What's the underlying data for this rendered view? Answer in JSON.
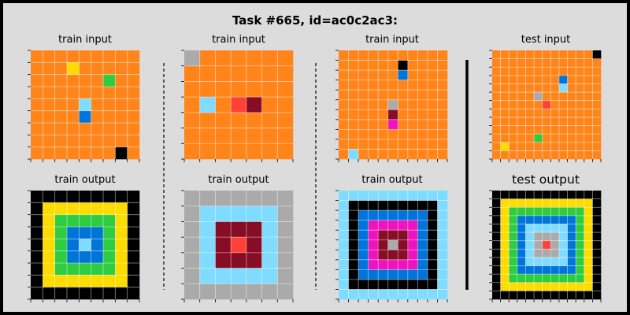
{
  "title": "Task #665, id=ac0c2ac3:",
  "colors": {
    "0": "#000000",
    "1": "#0074d9",
    "2": "#ff4136",
    "3": "#2ecc40",
    "4": "#ffdc00",
    "5": "#aaaaaa",
    "6": "#f012be",
    "7": "#ff851b",
    "8": "#7fdbff",
    "9": "#870c25"
  },
  "panels": [
    {
      "label": "train input",
      "size": 9,
      "cells": [
        [
          7,
          7,
          7,
          7,
          7,
          7,
          7,
          7,
          7
        ],
        [
          7,
          7,
          7,
          4,
          7,
          7,
          7,
          7,
          7
        ],
        [
          7,
          7,
          7,
          7,
          7,
          7,
          3,
          7,
          7
        ],
        [
          7,
          7,
          7,
          7,
          7,
          7,
          7,
          7,
          7
        ],
        [
          7,
          7,
          7,
          7,
          8,
          7,
          7,
          7,
          7
        ],
        [
          7,
          7,
          7,
          7,
          1,
          7,
          7,
          7,
          7
        ],
        [
          7,
          7,
          7,
          7,
          7,
          7,
          7,
          7,
          7
        ],
        [
          7,
          7,
          7,
          7,
          7,
          7,
          7,
          7,
          7
        ],
        [
          7,
          7,
          7,
          7,
          7,
          7,
          7,
          0,
          7
        ]
      ]
    },
    {
      "label": "train output",
      "size": 9,
      "cells": [
        [
          0,
          0,
          0,
          0,
          0,
          0,
          0,
          0,
          0
        ],
        [
          0,
          4,
          4,
          4,
          4,
          4,
          4,
          4,
          0
        ],
        [
          0,
          4,
          3,
          3,
          3,
          3,
          3,
          4,
          0
        ],
        [
          0,
          4,
          3,
          1,
          1,
          1,
          3,
          4,
          0
        ],
        [
          0,
          4,
          3,
          1,
          8,
          1,
          3,
          4,
          0
        ],
        [
          0,
          4,
          3,
          1,
          1,
          1,
          3,
          4,
          0
        ],
        [
          0,
          4,
          3,
          3,
          3,
          3,
          3,
          4,
          0
        ],
        [
          0,
          4,
          4,
          4,
          4,
          4,
          4,
          4,
          0
        ],
        [
          0,
          0,
          0,
          0,
          0,
          0,
          0,
          0,
          0
        ]
      ]
    },
    {
      "label": "train input",
      "size": 7,
      "cells": [
        [
          5,
          7,
          7,
          7,
          7,
          7,
          7
        ],
        [
          7,
          7,
          7,
          7,
          7,
          7,
          7
        ],
        [
          7,
          7,
          7,
          7,
          7,
          7,
          7
        ],
        [
          7,
          8,
          7,
          2,
          9,
          7,
          7
        ],
        [
          7,
          7,
          7,
          7,
          7,
          7,
          7
        ],
        [
          7,
          7,
          7,
          7,
          7,
          7,
          7
        ],
        [
          7,
          7,
          7,
          7,
          7,
          7,
          7
        ]
      ]
    },
    {
      "label": "train output",
      "size": 7,
      "cells": [
        [
          5,
          5,
          5,
          5,
          5,
          5,
          5
        ],
        [
          5,
          8,
          8,
          8,
          8,
          8,
          5
        ],
        [
          5,
          8,
          9,
          9,
          9,
          8,
          5
        ],
        [
          5,
          8,
          9,
          2,
          9,
          8,
          5
        ],
        [
          5,
          8,
          9,
          9,
          9,
          8,
          5
        ],
        [
          5,
          8,
          8,
          8,
          8,
          8,
          5
        ],
        [
          5,
          5,
          5,
          5,
          5,
          5,
          5
        ]
      ]
    },
    {
      "label": "train input",
      "size": 11,
      "cells": [
        [
          7,
          7,
          7,
          7,
          7,
          7,
          7,
          7,
          7,
          7,
          7
        ],
        [
          7,
          7,
          7,
          7,
          7,
          7,
          0,
          7,
          7,
          7,
          7
        ],
        [
          7,
          7,
          7,
          7,
          7,
          7,
          1,
          7,
          7,
          7,
          7
        ],
        [
          7,
          7,
          7,
          7,
          7,
          7,
          7,
          7,
          7,
          7,
          7
        ],
        [
          7,
          7,
          7,
          7,
          7,
          7,
          7,
          7,
          7,
          7,
          7
        ],
        [
          7,
          7,
          7,
          7,
          7,
          5,
          7,
          7,
          7,
          7,
          7
        ],
        [
          7,
          7,
          7,
          7,
          7,
          9,
          7,
          7,
          7,
          7,
          7
        ],
        [
          7,
          7,
          7,
          7,
          7,
          6,
          7,
          7,
          7,
          7,
          7
        ],
        [
          7,
          7,
          7,
          7,
          7,
          7,
          7,
          7,
          7,
          7,
          7
        ],
        [
          7,
          7,
          7,
          7,
          7,
          7,
          7,
          7,
          7,
          7,
          7
        ],
        [
          7,
          8,
          7,
          7,
          7,
          7,
          7,
          7,
          7,
          7,
          7
        ]
      ]
    },
    {
      "label": "train output",
      "size": 11,
      "cells": [
        [
          8,
          8,
          8,
          8,
          8,
          8,
          8,
          8,
          8,
          8,
          8
        ],
        [
          8,
          0,
          0,
          0,
          0,
          0,
          0,
          0,
          0,
          0,
          8
        ],
        [
          8,
          0,
          1,
          1,
          1,
          1,
          1,
          1,
          1,
          0,
          8
        ],
        [
          8,
          0,
          1,
          6,
          6,
          6,
          6,
          6,
          1,
          0,
          8
        ],
        [
          8,
          0,
          1,
          6,
          9,
          9,
          9,
          6,
          1,
          0,
          8
        ],
        [
          8,
          0,
          1,
          6,
          9,
          5,
          9,
          6,
          1,
          0,
          8
        ],
        [
          8,
          0,
          1,
          6,
          9,
          9,
          9,
          6,
          1,
          0,
          8
        ],
        [
          8,
          0,
          1,
          6,
          6,
          6,
          6,
          6,
          1,
          0,
          8
        ],
        [
          8,
          0,
          1,
          1,
          1,
          1,
          1,
          1,
          1,
          0,
          8
        ],
        [
          8,
          0,
          0,
          0,
          0,
          0,
          0,
          0,
          0,
          0,
          8
        ],
        [
          8,
          8,
          8,
          8,
          8,
          8,
          8,
          8,
          8,
          8,
          8
        ]
      ]
    },
    {
      "label": "test input",
      "size": 13,
      "cells": [
        [
          7,
          7,
          7,
          7,
          7,
          7,
          7,
          7,
          7,
          7,
          7,
          7,
          0
        ],
        [
          7,
          7,
          7,
          7,
          7,
          7,
          7,
          7,
          7,
          7,
          7,
          7,
          7
        ],
        [
          7,
          7,
          7,
          7,
          7,
          7,
          7,
          7,
          7,
          7,
          7,
          7,
          7
        ],
        [
          7,
          7,
          7,
          7,
          7,
          7,
          7,
          7,
          7,
          7,
          7,
          7,
          7
        ],
        [
          7,
          7,
          7,
          7,
          7,
          7,
          7,
          7,
          7,
          7,
          7,
          7,
          7
        ],
        [
          7,
          7,
          7,
          7,
          7,
          7,
          7,
          7,
          7,
          7,
          7,
          7,
          7
        ],
        [
          7,
          7,
          7,
          7,
          7,
          7,
          7,
          7,
          7,
          7,
          7,
          7,
          7
        ],
        [
          7,
          7,
          7,
          7,
          7,
          7,
          7,
          7,
          7,
          7,
          7,
          7,
          7
        ],
        [
          7,
          7,
          7,
          7,
          7,
          7,
          7,
          7,
          7,
          7,
          7,
          7,
          7
        ],
        [
          7,
          7,
          7,
          7,
          7,
          7,
          7,
          7,
          7,
          7,
          7,
          7,
          7
        ],
        [
          7,
          7,
          7,
          7,
          7,
          7,
          7,
          7,
          7,
          7,
          7,
          7,
          7
        ],
        [
          7,
          7,
          7,
          7,
          7,
          7,
          7,
          7,
          7,
          7,
          7,
          7,
          7
        ],
        [
          7,
          7,
          7,
          7,
          7,
          7,
          7,
          7,
          7,
          7,
          7,
          7,
          7
        ]
      ],
      "marks": [
        {
          "r": 0,
          "c": 12,
          "v": 0
        },
        {
          "r": 3,
          "c": 8,
          "v": 1
        },
        {
          "r": 4,
          "c": 8,
          "v": 8
        },
        {
          "r": 5,
          "c": 5,
          "v": 5
        },
        {
          "r": 6,
          "c": 6,
          "v": 2
        },
        {
          "r": 10,
          "c": 5,
          "v": 3
        },
        {
          "r": 11,
          "c": 1,
          "v": 4
        }
      ]
    },
    {
      "label": "test output",
      "size": 13,
      "rings": [
        0,
        4,
        3,
        1,
        8,
        5,
        2
      ]
    }
  ]
}
